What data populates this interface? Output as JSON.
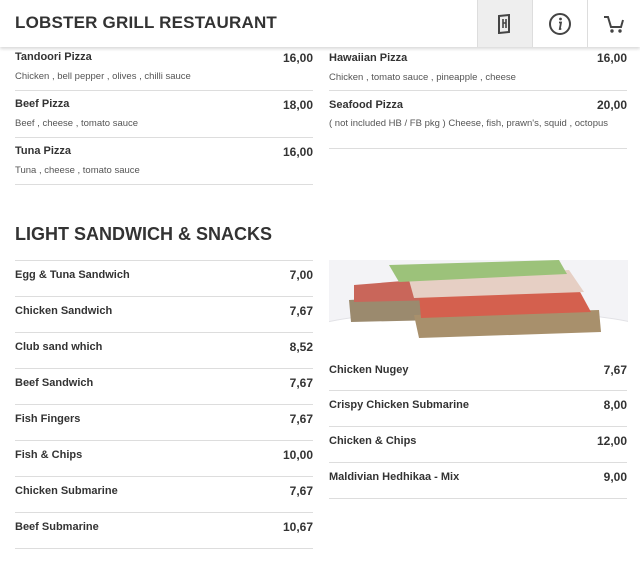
{
  "header": {
    "title": "LOBSTER GRILL RESTAURANT",
    "icons": [
      "menu-icon",
      "info-icon",
      "cart-icon"
    ]
  },
  "pizza_left": [
    {
      "name": "Tandoori Pizza",
      "price": "16,00",
      "desc": "Chicken , bell pepper , olives , chilli sauce"
    },
    {
      "name": "Beef Pizza",
      "price": "18,00",
      "desc": "Beef , cheese , tomato sauce"
    },
    {
      "name": "Tuna Pizza",
      "price": "16,00",
      "desc": "Tuna , cheese , tomato sauce"
    }
  ],
  "pizza_right": [
    {
      "name": "Hawaiian Pizza",
      "price": "16,00",
      "desc": "Chicken , tomato sauce , pineapple , cheese"
    },
    {
      "name": "Seafood Pizza",
      "price": "20,00",
      "desc": "( not included HB / FB pkg ) Cheese, fish, prawn's, squid , octopus"
    }
  ],
  "snacks": {
    "title": "LIGHT SANDWICH & SNACKS",
    "left": [
      {
        "name": "Egg & Tuna Sandwich",
        "price": "7,00"
      },
      {
        "name": "Chicken Sandwich",
        "price": "7,67"
      },
      {
        "name": "Club sand which",
        "price": "8,52"
      },
      {
        "name": "Beef Sandwich",
        "price": "7,67"
      },
      {
        "name": "Fish Fingers",
        "price": "7,67"
      },
      {
        "name": "Fish & Chips",
        "price": "10,00"
      },
      {
        "name": "Chicken Submarine",
        "price": "7,67"
      },
      {
        "name": "Beef Submarine",
        "price": "10,67"
      }
    ],
    "right": [
      {
        "name": "Chicken Nugey",
        "price": "7,67"
      },
      {
        "name": "Crispy Chicken Submarine",
        "price": "8,00"
      },
      {
        "name": "Chicken & Chips",
        "price": "12,00"
      },
      {
        "name": "Maldivian Hedhikaa - Mix",
        "price": "9,00"
      }
    ]
  }
}
